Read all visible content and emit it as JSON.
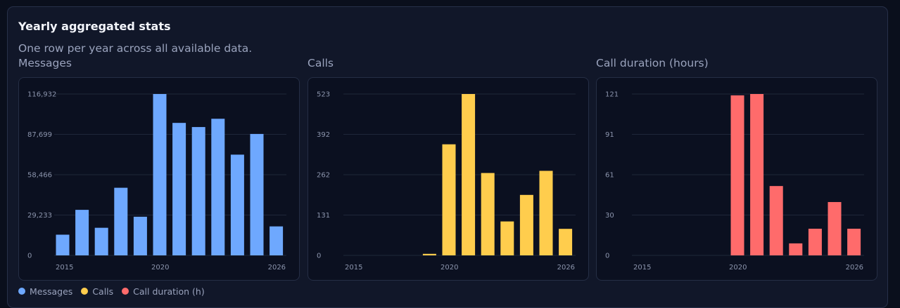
{
  "header": {
    "title": "Yearly aggregated stats",
    "subtitle": "One row per year across all available data."
  },
  "legend": [
    {
      "label": "Messages",
      "color": "#6ea8fe"
    },
    {
      "label": "Calls",
      "color": "#ffcd4d"
    },
    {
      "label": "Call duration (h)",
      "color": "#ff6b6b"
    }
  ],
  "chart_data": [
    {
      "type": "bar",
      "title": "Messages",
      "color": "#6ea8fe",
      "categories": [
        2015,
        2016,
        2017,
        2018,
        2019,
        2020,
        2021,
        2022,
        2023,
        2024,
        2025,
        2026
      ],
      "values": [
        15000,
        33000,
        20000,
        49000,
        28000,
        116932,
        96000,
        93000,
        99000,
        73000,
        88000,
        21000
      ],
      "y_ticks": [
        "0",
        "29,233",
        "58,466",
        "87,699",
        "116,932"
      ],
      "ylim": [
        0,
        116932
      ],
      "x_ticks": [
        "2015",
        "2020",
        "2026"
      ],
      "grid": true
    },
    {
      "type": "bar",
      "title": "Calls",
      "color": "#ffcd4d",
      "categories": [
        2015,
        2016,
        2017,
        2018,
        2019,
        2020,
        2021,
        2022,
        2023,
        2024,
        2025,
        2026
      ],
      "values": [
        0,
        0,
        0,
        0,
        5,
        360,
        523,
        267,
        110,
        196,
        274,
        86
      ],
      "y_ticks": [
        "0",
        "131",
        "262",
        "392",
        "523"
      ],
      "ylim": [
        0,
        523
      ],
      "x_ticks": [
        "2015",
        "2020",
        "2026"
      ],
      "grid": true
    },
    {
      "type": "bar",
      "title": "Call duration (hours)",
      "color": "#ff6b6b",
      "categories": [
        2015,
        2016,
        2017,
        2018,
        2019,
        2020,
        2021,
        2022,
        2023,
        2024,
        2025,
        2026
      ],
      "values": [
        0,
        0,
        0,
        0,
        0,
        120,
        121,
        52,
        9,
        20,
        40,
        20
      ],
      "y_ticks": [
        "0",
        "30",
        "61",
        "91",
        "121"
      ],
      "ylim": [
        0,
        121
      ],
      "x_ticks": [
        "2015",
        "2020",
        "2026"
      ],
      "grid": true
    }
  ]
}
